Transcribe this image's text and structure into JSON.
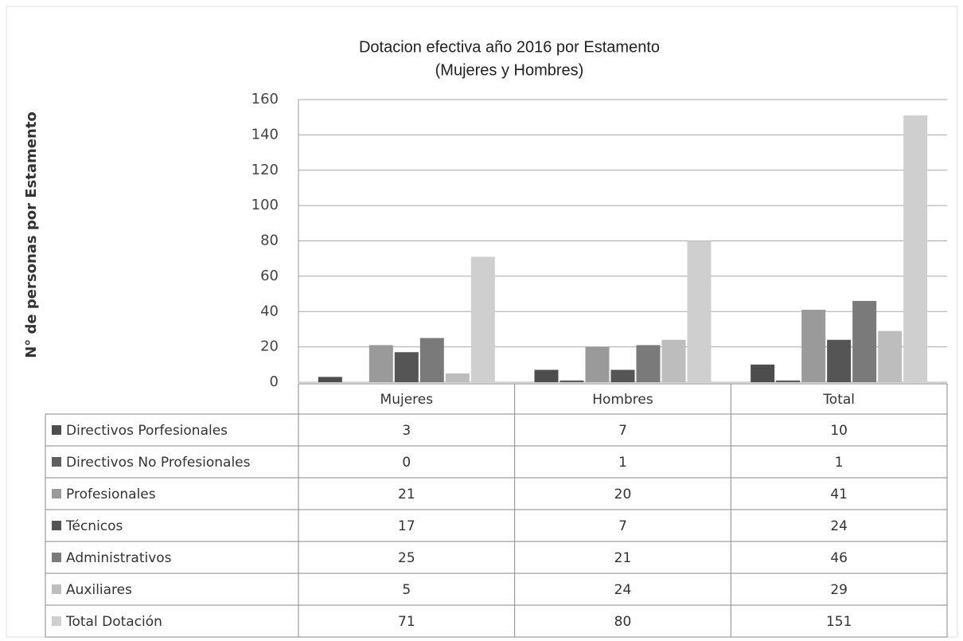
{
  "chart_data": {
    "type": "bar",
    "title": "Dotacion efectiva año 2016 por Estamento",
    "subtitle": "(Mujeres y Hombres)",
    "y_label": "N° de personas por Estamento",
    "categories": [
      "Mujeres",
      "Hombres",
      "Total"
    ],
    "series": [
      {
        "name": "Directivos Porfesionales",
        "color": "#4d4d4d",
        "values": [
          3,
          7,
          10
        ]
      },
      {
        "name": "Directivos No Profesionales",
        "color": "#5e5e5e",
        "values": [
          0,
          1,
          1
        ]
      },
      {
        "name": "Profesionales",
        "color": "#9a9a9a",
        "values": [
          21,
          20,
          41
        ]
      },
      {
        "name": "Técnicos",
        "color": "#555555",
        "values": [
          17,
          7,
          24
        ]
      },
      {
        "name": "Administrativos",
        "color": "#7a7a7a",
        "values": [
          25,
          21,
          46
        ]
      },
      {
        "name": "Auxiliares",
        "color": "#bdbdbd",
        "values": [
          5,
          24,
          29
        ]
      },
      {
        "name": "Total Dotación",
        "color": "#cfcfcf",
        "values": [
          71,
          80,
          151
        ]
      }
    ],
    "ylim": [
      0,
      160
    ],
    "yticks": [
      0,
      20,
      40,
      60,
      80,
      100,
      120,
      140,
      160
    ],
    "grid": true
  }
}
